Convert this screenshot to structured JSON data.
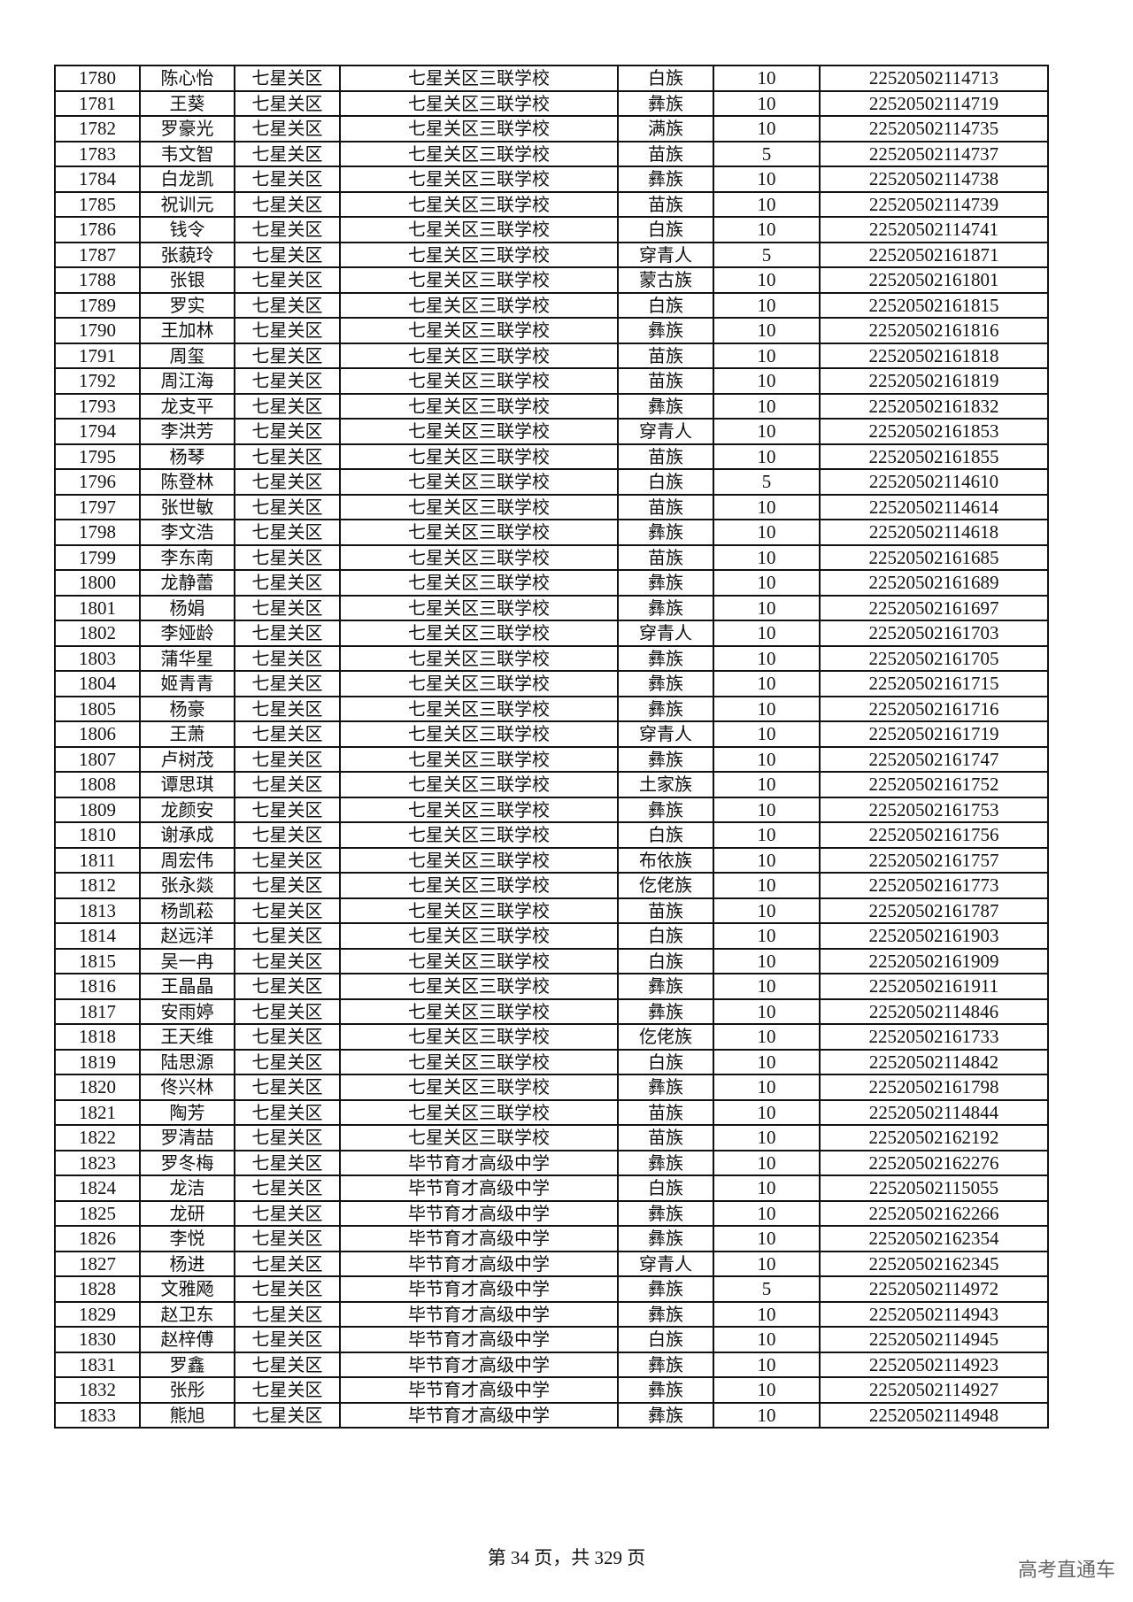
{
  "table": {
    "rows": [
      [
        "1780",
        "陈心怡",
        "七星关区",
        "七星关区三联学校",
        "白族",
        "10",
        "22520502114713"
      ],
      [
        "1781",
        "王葵",
        "七星关区",
        "七星关区三联学校",
        "彝族",
        "10",
        "22520502114719"
      ],
      [
        "1782",
        "罗豪光",
        "七星关区",
        "七星关区三联学校",
        "满族",
        "10",
        "22520502114735"
      ],
      [
        "1783",
        "韦文智",
        "七星关区",
        "七星关区三联学校",
        "苗族",
        "5",
        "22520502114737"
      ],
      [
        "1784",
        "白龙凯",
        "七星关区",
        "七星关区三联学校",
        "彝族",
        "10",
        "22520502114738"
      ],
      [
        "1785",
        "祝训元",
        "七星关区",
        "七星关区三联学校",
        "苗族",
        "10",
        "22520502114739"
      ],
      [
        "1786",
        "钱令",
        "七星关区",
        "七星关区三联学校",
        "白族",
        "10",
        "22520502114741"
      ],
      [
        "1787",
        "张藐玲",
        "七星关区",
        "七星关区三联学校",
        "穿青人",
        "5",
        "22520502161871"
      ],
      [
        "1788",
        "张银",
        "七星关区",
        "七星关区三联学校",
        "蒙古族",
        "10",
        "22520502161801"
      ],
      [
        "1789",
        "罗实",
        "七星关区",
        "七星关区三联学校",
        "白族",
        "10",
        "22520502161815"
      ],
      [
        "1790",
        "王加林",
        "七星关区",
        "七星关区三联学校",
        "彝族",
        "10",
        "22520502161816"
      ],
      [
        "1791",
        "周玺",
        "七星关区",
        "七星关区三联学校",
        "苗族",
        "10",
        "22520502161818"
      ],
      [
        "1792",
        "周江海",
        "七星关区",
        "七星关区三联学校",
        "苗族",
        "10",
        "22520502161819"
      ],
      [
        "1793",
        "龙支平",
        "七星关区",
        "七星关区三联学校",
        "彝族",
        "10",
        "22520502161832"
      ],
      [
        "1794",
        "李洪芳",
        "七星关区",
        "七星关区三联学校",
        "穿青人",
        "10",
        "22520502161853"
      ],
      [
        "1795",
        "杨琴",
        "七星关区",
        "七星关区三联学校",
        "苗族",
        "10",
        "22520502161855"
      ],
      [
        "1796",
        "陈登林",
        "七星关区",
        "七星关区三联学校",
        "白族",
        "5",
        "22520502114610"
      ],
      [
        "1797",
        "张世敏",
        "七星关区",
        "七星关区三联学校",
        "苗族",
        "10",
        "22520502114614"
      ],
      [
        "1798",
        "李文浩",
        "七星关区",
        "七星关区三联学校",
        "彝族",
        "10",
        "22520502114618"
      ],
      [
        "1799",
        "李东南",
        "七星关区",
        "七星关区三联学校",
        "苗族",
        "10",
        "22520502161685"
      ],
      [
        "1800",
        "龙静蕾",
        "七星关区",
        "七星关区三联学校",
        "彝族",
        "10",
        "22520502161689"
      ],
      [
        "1801",
        "杨娟",
        "七星关区",
        "七星关区三联学校",
        "彝族",
        "10",
        "22520502161697"
      ],
      [
        "1802",
        "李娅龄",
        "七星关区",
        "七星关区三联学校",
        "穿青人",
        "10",
        "22520502161703"
      ],
      [
        "1803",
        "蒲华星",
        "七星关区",
        "七星关区三联学校",
        "彝族",
        "10",
        "22520502161705"
      ],
      [
        "1804",
        "姬青青",
        "七星关区",
        "七星关区三联学校",
        "彝族",
        "10",
        "22520502161715"
      ],
      [
        "1805",
        "杨豪",
        "七星关区",
        "七星关区三联学校",
        "彝族",
        "10",
        "22520502161716"
      ],
      [
        "1806",
        "王萧",
        "七星关区",
        "七星关区三联学校",
        "穿青人",
        "10",
        "22520502161719"
      ],
      [
        "1807",
        "卢树茂",
        "七星关区",
        "七星关区三联学校",
        "彝族",
        "10",
        "22520502161747"
      ],
      [
        "1808",
        "谭思琪",
        "七星关区",
        "七星关区三联学校",
        "土家族",
        "10",
        "22520502161752"
      ],
      [
        "1809",
        "龙颜安",
        "七星关区",
        "七星关区三联学校",
        "彝族",
        "10",
        "22520502161753"
      ],
      [
        "1810",
        "谢承成",
        "七星关区",
        "七星关区三联学校",
        "白族",
        "10",
        "22520502161756"
      ],
      [
        "1811",
        "周宏伟",
        "七星关区",
        "七星关区三联学校",
        "布依族",
        "10",
        "22520502161757"
      ],
      [
        "1812",
        "张永燚",
        "七星关区",
        "七星关区三联学校",
        "仡佬族",
        "10",
        "22520502161773"
      ],
      [
        "1813",
        "杨凯菘",
        "七星关区",
        "七星关区三联学校",
        "苗族",
        "10",
        "22520502161787"
      ],
      [
        "1814",
        "赵远洋",
        "七星关区",
        "七星关区三联学校",
        "白族",
        "10",
        "22520502161903"
      ],
      [
        "1815",
        "吴一冉",
        "七星关区",
        "七星关区三联学校",
        "白族",
        "10",
        "22520502161909"
      ],
      [
        "1816",
        "王晶晶",
        "七星关区",
        "七星关区三联学校",
        "彝族",
        "10",
        "22520502161911"
      ],
      [
        "1817",
        "安雨婷",
        "七星关区",
        "七星关区三联学校",
        "彝族",
        "10",
        "22520502114846"
      ],
      [
        "1818",
        "王天维",
        "七星关区",
        "七星关区三联学校",
        "仡佬族",
        "10",
        "22520502161733"
      ],
      [
        "1819",
        "陆思源",
        "七星关区",
        "七星关区三联学校",
        "白族",
        "10",
        "22520502114842"
      ],
      [
        "1820",
        "佟兴林",
        "七星关区",
        "七星关区三联学校",
        "彝族",
        "10",
        "22520502161798"
      ],
      [
        "1821",
        "陶芳",
        "七星关区",
        "七星关区三联学校",
        "苗族",
        "10",
        "22520502114844"
      ],
      [
        "1822",
        "罗清喆",
        "七星关区",
        "七星关区三联学校",
        "苗族",
        "10",
        "22520502162192"
      ],
      [
        "1823",
        "罗冬梅",
        "七星关区",
        "毕节育才高级中学",
        "彝族",
        "10",
        "22520502162276"
      ],
      [
        "1824",
        "龙洁",
        "七星关区",
        "毕节育才高级中学",
        "白族",
        "10",
        "22520502115055"
      ],
      [
        "1825",
        "龙研",
        "七星关区",
        "毕节育才高级中学",
        "彝族",
        "10",
        "22520502162266"
      ],
      [
        "1826",
        "李悦",
        "七星关区",
        "毕节育才高级中学",
        "彝族",
        "10",
        "22520502162354"
      ],
      [
        "1827",
        "杨进",
        "七星关区",
        "毕节育才高级中学",
        "穿青人",
        "10",
        "22520502162345"
      ],
      [
        "1828",
        "文雅飏",
        "七星关区",
        "毕节育才高级中学",
        "彝族",
        "5",
        "22520502114972"
      ],
      [
        "1829",
        "赵卫东",
        "七星关区",
        "毕节育才高级中学",
        "彝族",
        "10",
        "22520502114943"
      ],
      [
        "1830",
        "赵梓傅",
        "七星关区",
        "毕节育才高级中学",
        "白族",
        "10",
        "22520502114945"
      ],
      [
        "1831",
        "罗鑫",
        "七星关区",
        "毕节育才高级中学",
        "彝族",
        "10",
        "22520502114923"
      ],
      [
        "1832",
        "张彤",
        "七星关区",
        "毕节育才高级中学",
        "彝族",
        "10",
        "22520502114927"
      ],
      [
        "1833",
        "熊旭",
        "七星关区",
        "毕节育才高级中学",
        "彝族",
        "10",
        "22520502114948"
      ]
    ]
  },
  "footer": {
    "page_label": "第 34 页，共 329 页"
  },
  "watermark": "高考直通车"
}
